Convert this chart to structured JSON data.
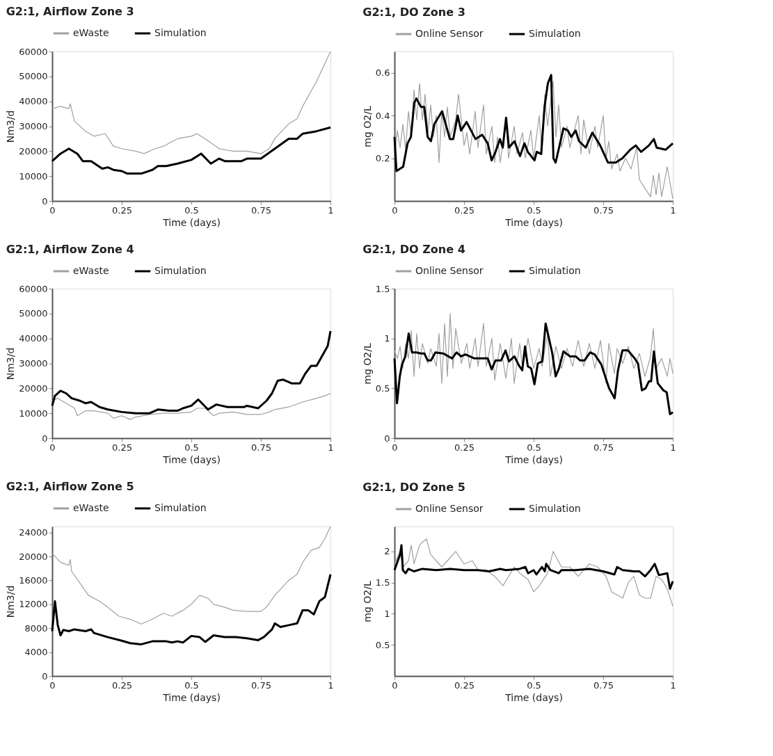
{
  "chart_data": [
    {
      "type": "line",
      "title": "G2:1, Airflow Zone 3",
      "xlabel": "Time (days)",
      "ylabel": "Nm3/d",
      "xlim": [
        0,
        1
      ],
      "xticks": [
        0,
        0.25,
        0.5,
        0.75,
        1
      ],
      "ylim": [
        0,
        60000
      ],
      "yticks": [
        0,
        10000,
        20000,
        30000,
        40000,
        50000,
        60000
      ],
      "grid": false,
      "legend": "top",
      "series": [
        {
          "name": "eWaste",
          "color": "#a0a0a0",
          "x": [
            0,
            0.03,
            0.06,
            0.065,
            0.08,
            0.12,
            0.15,
            0.19,
            0.22,
            0.25,
            0.3,
            0.33,
            0.37,
            0.4,
            0.45,
            0.5,
            0.52,
            0.55,
            0.6,
            0.65,
            0.7,
            0.75,
            0.78,
            0.8,
            0.85,
            0.88,
            0.9,
            0.95,
            1
          ],
          "values": [
            37000,
            38000,
            37000,
            39000,
            32000,
            28000,
            26000,
            27000,
            22000,
            21000,
            20000,
            19000,
            21000,
            22000,
            25000,
            26000,
            27000,
            25000,
            21000,
            20000,
            20000,
            19000,
            21000,
            25000,
            31000,
            33000,
            38000,
            48000,
            60000
          ]
        },
        {
          "name": "Simulation",
          "color": "#000000",
          "x": [
            0,
            0.03,
            0.06,
            0.09,
            0.11,
            0.14,
            0.18,
            0.2,
            0.22,
            0.25,
            0.27,
            0.32,
            0.36,
            0.38,
            0.41,
            0.45,
            0.5,
            0.535,
            0.57,
            0.6,
            0.62,
            0.68,
            0.7,
            0.75,
            0.8,
            0.85,
            0.88,
            0.9,
            0.95,
            1
          ],
          "values": [
            16000,
            19000,
            21000,
            19000,
            16000,
            16000,
            13000,
            13500,
            12500,
            12000,
            11000,
            11000,
            12500,
            14000,
            14000,
            15000,
            16500,
            19000,
            15000,
            17000,
            16000,
            16000,
            17000,
            17000,
            21000,
            25000,
            25000,
            27000,
            28000,
            29500
          ]
        }
      ]
    },
    {
      "type": "line",
      "title": "G2:1, DO Zone 3",
      "xlabel": "Time (days)",
      "ylabel": "mg O2/L",
      "xlim": [
        0,
        1
      ],
      "xticks": [
        0,
        0.25,
        0.5,
        0.75,
        1
      ],
      "ylim": [
        0,
        0.7
      ],
      "yticks": [
        0.2,
        0.4,
        0.6
      ],
      "grid": false,
      "legend": "top",
      "series": [
        {
          "name": "Online Sensor",
          "color": "#a0a0a0",
          "x": [
            0,
            0.01,
            0.02,
            0.03,
            0.04,
            0.05,
            0.06,
            0.07,
            0.08,
            0.09,
            0.1,
            0.11,
            0.12,
            0.13,
            0.14,
            0.15,
            0.16,
            0.17,
            0.18,
            0.19,
            0.2,
            0.22,
            0.23,
            0.25,
            0.26,
            0.27,
            0.29,
            0.3,
            0.32,
            0.33,
            0.35,
            0.36,
            0.37,
            0.38,
            0.4,
            0.41,
            0.43,
            0.44,
            0.46,
            0.47,
            0.49,
            0.5,
            0.52,
            0.53,
            0.54,
            0.55,
            0.57,
            0.58,
            0.59,
            0.6,
            0.62,
            0.63,
            0.66,
            0.67,
            0.68,
            0.7,
            0.72,
            0.73,
            0.75,
            0.76,
            0.77,
            0.78,
            0.8,
            0.81,
            0.83,
            0.85,
            0.87,
            0.88,
            0.9,
            0.92,
            0.93,
            0.94,
            0.95,
            0.96,
            0.98,
            1
          ],
          "values": [
            0.2,
            0.33,
            0.25,
            0.36,
            0.24,
            0.42,
            0.3,
            0.52,
            0.38,
            0.55,
            0.38,
            0.5,
            0.32,
            0.45,
            0.3,
            0.4,
            0.18,
            0.42,
            0.3,
            0.44,
            0.3,
            0.38,
            0.5,
            0.26,
            0.32,
            0.22,
            0.42,
            0.25,
            0.45,
            0.22,
            0.35,
            0.18,
            0.3,
            0.18,
            0.38,
            0.2,
            0.35,
            0.22,
            0.32,
            0.2,
            0.33,
            0.2,
            0.4,
            0.22,
            0.5,
            0.35,
            0.56,
            0.3,
            0.45,
            0.25,
            0.35,
            0.25,
            0.4,
            0.22,
            0.38,
            0.22,
            0.35,
            0.25,
            0.4,
            0.2,
            0.28,
            0.15,
            0.22,
            0.14,
            0.2,
            0.15,
            0.25,
            0.1,
            0.06,
            0.02,
            0.12,
            0.03,
            0.13,
            0.02,
            0.16,
            0.01
          ]
        },
        {
          "name": "Simulation",
          "color": "#000000",
          "x": [
            0,
            0.007,
            0.031,
            0.047,
            0.059,
            0.071,
            0.079,
            0.095,
            0.107,
            0.119,
            0.131,
            0.143,
            0.171,
            0.199,
            0.211,
            0.227,
            0.239,
            0.259,
            0.291,
            0.315,
            0.335,
            0.349,
            0.363,
            0.379,
            0.389,
            0.401,
            0.411,
            0.431,
            0.451,
            0.467,
            0.479,
            0.503,
            0.511,
            0.527,
            0.539,
            0.551,
            0.563,
            0.571,
            0.579,
            0.607,
            0.623,
            0.635,
            0.651,
            0.663,
            0.687,
            0.711,
            0.739,
            0.767,
            0.795,
            0.819,
            0.847,
            0.867,
            0.886,
            0.914,
            0.932,
            0.942,
            0.974,
            1
          ],
          "values": [
            0.3,
            0.14,
            0.16,
            0.27,
            0.3,
            0.46,
            0.48,
            0.44,
            0.44,
            0.3,
            0.28,
            0.36,
            0.42,
            0.29,
            0.29,
            0.4,
            0.33,
            0.37,
            0.29,
            0.31,
            0.27,
            0.19,
            0.23,
            0.29,
            0.25,
            0.39,
            0.25,
            0.28,
            0.21,
            0.27,
            0.23,
            0.19,
            0.23,
            0.22,
            0.44,
            0.55,
            0.59,
            0.2,
            0.18,
            0.34,
            0.33,
            0.3,
            0.33,
            0.28,
            0.25,
            0.32,
            0.26,
            0.18,
            0.18,
            0.2,
            0.24,
            0.26,
            0.23,
            0.26,
            0.29,
            0.25,
            0.24,
            0.27
          ]
        }
      ]
    },
    {
      "type": "line",
      "title": "G2:1, Airflow Zone 4",
      "xlabel": "Time (days)",
      "ylabel": "Nm3/d",
      "xlim": [
        0,
        1
      ],
      "xticks": [
        0,
        0.25,
        0.5,
        0.75,
        1
      ],
      "ylim": [
        0,
        60000
      ],
      "yticks": [
        0,
        10000,
        20000,
        30000,
        40000,
        50000,
        60000
      ],
      "grid": false,
      "legend": "top",
      "series": [
        {
          "name": "eWaste",
          "color": "#a0a0a0",
          "x": [
            0,
            0.02,
            0.05,
            0.08,
            0.09,
            0.12,
            0.15,
            0.2,
            0.22,
            0.25,
            0.28,
            0.3,
            0.35,
            0.4,
            0.45,
            0.5,
            0.52,
            0.55,
            0.58,
            0.6,
            0.65,
            0.7,
            0.75,
            0.78,
            0.8,
            0.85,
            0.9,
            0.95,
            0.98,
            1
          ],
          "values": [
            15000,
            16000,
            14000,
            12000,
            9000,
            11000,
            11000,
            10000,
            8000,
            9000,
            7500,
            8500,
            9500,
            10000,
            10000,
            10500,
            12000,
            12000,
            9000,
            10000,
            10500,
            9500,
            9500,
            10500,
            11500,
            12500,
            14500,
            16000,
            17000,
            18000
          ]
        },
        {
          "name": "Simulation",
          "color": "#000000",
          "x": [
            0,
            0.01,
            0.03,
            0.05,
            0.07,
            0.1,
            0.12,
            0.14,
            0.17,
            0.2,
            0.25,
            0.3,
            0.35,
            0.38,
            0.42,
            0.45,
            0.47,
            0.5,
            0.525,
            0.56,
            0.59,
            0.63,
            0.69,
            0.7,
            0.74,
            0.77,
            0.79,
            0.81,
            0.83,
            0.86,
            0.89,
            0.91,
            0.93,
            0.95,
            0.97,
            0.99,
            1
          ],
          "values": [
            13000,
            17000,
            19000,
            18000,
            16000,
            15000,
            14000,
            14500,
            12500,
            11500,
            10500,
            10000,
            10000,
            11500,
            11000,
            11000,
            12000,
            13000,
            15500,
            11500,
            13500,
            12500,
            12500,
            13000,
            12000,
            15000,
            18000,
            23000,
            23500,
            22000,
            22000,
            26000,
            29000,
            29000,
            33000,
            37000,
            43000
          ]
        }
      ]
    },
    {
      "type": "line",
      "title": "G2:1, DO Zone 4",
      "xlabel": "Time (days)",
      "ylabel": "mg O2/L",
      "xlim": [
        0,
        1
      ],
      "xticks": [
        0,
        0.25,
        0.5,
        0.75,
        1
      ],
      "ylim": [
        0,
        1.5
      ],
      "yticks": [
        0,
        0.5,
        1,
        1.5
      ],
      "grid": false,
      "legend": "top",
      "series": [
        {
          "name": "Online Sensor",
          "color": "#a0a0a0",
          "x": [
            0,
            0.01,
            0.02,
            0.03,
            0.04,
            0.05,
            0.06,
            0.07,
            0.08,
            0.09,
            0.1,
            0.12,
            0.13,
            0.15,
            0.16,
            0.17,
            0.18,
            0.19,
            0.2,
            0.21,
            0.22,
            0.24,
            0.26,
            0.27,
            0.29,
            0.3,
            0.32,
            0.33,
            0.35,
            0.36,
            0.38,
            0.4,
            0.42,
            0.43,
            0.45,
            0.46,
            0.48,
            0.5,
            0.52,
            0.53,
            0.55,
            0.56,
            0.58,
            0.6,
            0.62,
            0.64,
            0.66,
            0.68,
            0.7,
            0.72,
            0.74,
            0.76,
            0.77,
            0.79,
            0.8,
            0.82,
            0.84,
            0.86,
            0.88,
            0.9,
            0.92,
            0.93,
            0.94,
            0.96,
            0.98,
            0.99,
            1
          ],
          "values": [
            0.88,
            0.8,
            0.92,
            0.7,
            0.95,
            0.8,
            1.08,
            0.62,
            1.05,
            0.7,
            0.95,
            0.75,
            0.9,
            0.72,
            1.05,
            0.55,
            1.15,
            0.62,
            1.25,
            0.7,
            1.1,
            0.75,
            0.95,
            0.7,
            1.0,
            0.72,
            1.15,
            0.72,
            1.0,
            0.58,
            0.95,
            0.6,
            1.0,
            0.55,
            0.95,
            0.7,
            1.0,
            0.7,
            0.9,
            0.72,
            1.05,
            0.62,
            0.92,
            0.7,
            0.9,
            0.72,
            0.98,
            0.72,
            0.95,
            0.7,
            0.98,
            0.55,
            0.95,
            0.65,
            0.9,
            0.75,
            0.92,
            0.7,
            0.85,
            0.62,
            0.82,
            1.1,
            0.7,
            0.8,
            0.62,
            0.8,
            0.65
          ]
        },
        {
          "name": "Simulation",
          "color": "#000000",
          "x": [
            0,
            0.009,
            0.019,
            0.027,
            0.039,
            0.051,
            0.063,
            0.079,
            0.095,
            0.107,
            0.119,
            0.131,
            0.147,
            0.175,
            0.207,
            0.223,
            0.239,
            0.255,
            0.287,
            0.335,
            0.349,
            0.363,
            0.383,
            0.399,
            0.411,
            0.431,
            0.447,
            0.459,
            0.469,
            0.479,
            0.491,
            0.503,
            0.515,
            0.531,
            0.543,
            0.555,
            0.567,
            0.579,
            0.591,
            0.607,
            0.631,
            0.651,
            0.667,
            0.683,
            0.703,
            0.719,
            0.743,
            0.771,
            0.791,
            0.803,
            0.819,
            0.839,
            0.863,
            0.875,
            0.889,
            0.902,
            0.914,
            0.922,
            0.932,
            0.946,
            0.966,
            0.978,
            0.99,
            1
          ],
          "values": [
            0.8,
            0.35,
            0.62,
            0.74,
            0.82,
            1.05,
            0.86,
            0.86,
            0.85,
            0.85,
            0.78,
            0.78,
            0.86,
            0.85,
            0.8,
            0.86,
            0.82,
            0.84,
            0.8,
            0.8,
            0.69,
            0.78,
            0.78,
            0.88,
            0.77,
            0.82,
            0.73,
            0.68,
            0.92,
            0.72,
            0.7,
            0.54,
            0.75,
            0.77,
            1.15,
            1.0,
            0.85,
            0.62,
            0.7,
            0.87,
            0.82,
            0.82,
            0.78,
            0.78,
            0.86,
            0.84,
            0.74,
            0.5,
            0.4,
            0.68,
            0.88,
            0.88,
            0.8,
            0.75,
            0.48,
            0.5,
            0.57,
            0.57,
            0.87,
            0.55,
            0.48,
            0.46,
            0.24,
            0.26
          ]
        }
      ]
    },
    {
      "type": "line",
      "title": "G2:1, Airflow Zone 5",
      "xlabel": "Time (days)",
      "ylabel": "Nm3/d",
      "xlim": [
        0,
        1
      ],
      "xticks": [
        0,
        0.25,
        0.5,
        0.75,
        1
      ],
      "ylim": [
        0,
        25000
      ],
      "yticks": [
        0,
        4000,
        8000,
        12000,
        16000,
        20000,
        24000
      ],
      "grid": false,
      "legend": "top",
      "series": [
        {
          "name": "eWaste",
          "color": "#a0a0a0",
          "x": [
            0,
            0.03,
            0.06,
            0.065,
            0.07,
            0.1,
            0.13,
            0.17,
            0.2,
            0.24,
            0.28,
            0.32,
            0.36,
            0.4,
            0.43,
            0.47,
            0.5,
            0.53,
            0.56,
            0.58,
            0.62,
            0.65,
            0.7,
            0.75,
            0.77,
            0.8,
            0.85,
            0.88,
            0.9,
            0.93,
            0.96,
            0.98,
            1
          ],
          "values": [
            20500,
            19000,
            18500,
            19500,
            17500,
            15500,
            13500,
            12500,
            11500,
            10000,
            9500,
            8700,
            9500,
            10500,
            10000,
            11000,
            12000,
            13500,
            13000,
            12000,
            11500,
            11000,
            10800,
            10800,
            11500,
            13500,
            16000,
            17000,
            19000,
            21000,
            21500,
            23000,
            25000
          ]
        },
        {
          "name": "Simulation",
          "color": "#000000",
          "x": [
            0,
            0.01,
            0.02,
            0.03,
            0.04,
            0.06,
            0.08,
            0.12,
            0.14,
            0.15,
            0.2,
            0.25,
            0.28,
            0.32,
            0.36,
            0.41,
            0.43,
            0.45,
            0.47,
            0.5,
            0.53,
            0.55,
            0.58,
            0.62,
            0.66,
            0.7,
            0.74,
            0.76,
            0.79,
            0.8,
            0.82,
            0.85,
            0.88,
            0.9,
            0.92,
            0.94,
            0.96,
            0.98,
            1
          ],
          "values": [
            7500,
            12500,
            8500,
            6800,
            7700,
            7500,
            7800,
            7500,
            7800,
            7200,
            6500,
            5900,
            5500,
            5300,
            5800,
            5800,
            5600,
            5800,
            5600,
            6700,
            6500,
            5700,
            6800,
            6500,
            6500,
            6300,
            6000,
            6500,
            7800,
            8800,
            8200,
            8500,
            8800,
            11000,
            11000,
            10300,
            12500,
            13200,
            17000
          ]
        }
      ]
    },
    {
      "type": "line",
      "title": "G2:1, DO Zone 5",
      "xlabel": "Time (days)",
      "ylabel": "mg O2/L",
      "xlim": [
        0,
        1
      ],
      "xticks": [
        0,
        0.25,
        0.5,
        0.75,
        1
      ],
      "ylim": [
        0,
        2.4
      ],
      "yticks": [
        0.5,
        1,
        1.5,
        2
      ],
      "grid": false,
      "legend": "top",
      "series": [
        {
          "name": "Online Sensor",
          "color": "#a0a0a0",
          "x": [
            0,
            0.02,
            0.03,
            0.05,
            0.06,
            0.07,
            0.09,
            0.1,
            0.115,
            0.13,
            0.15,
            0.17,
            0.19,
            0.22,
            0.25,
            0.28,
            0.3,
            0.33,
            0.36,
            0.39,
            0.41,
            0.43,
            0.45,
            0.48,
            0.5,
            0.52,
            0.55,
            0.57,
            0.6,
            0.63,
            0.66,
            0.7,
            0.73,
            0.76,
            0.78,
            0.8,
            0.82,
            0.84,
            0.86,
            0.88,
            0.9,
            0.92,
            0.94,
            0.96,
            0.98,
            1
          ],
          "values": [
            1.8,
            2.0,
            1.75,
            1.85,
            2.1,
            1.8,
            2.1,
            2.15,
            2.2,
            1.95,
            1.85,
            1.75,
            1.85,
            2.0,
            1.8,
            1.85,
            1.7,
            1.7,
            1.6,
            1.45,
            1.6,
            1.75,
            1.65,
            1.55,
            1.35,
            1.45,
            1.65,
            2.0,
            1.75,
            1.75,
            1.6,
            1.8,
            1.75,
            1.6,
            1.35,
            1.3,
            1.25,
            1.5,
            1.6,
            1.3,
            1.25,
            1.25,
            1.6,
            1.55,
            1.4,
            1.12
          ]
        },
        {
          "name": "Simulation",
          "color": "#000000",
          "x": [
            0,
            0.02,
            0.025,
            0.03,
            0.04,
            0.05,
            0.07,
            0.1,
            0.15,
            0.2,
            0.25,
            0.3,
            0.34,
            0.38,
            0.4,
            0.45,
            0.47,
            0.48,
            0.5,
            0.51,
            0.53,
            0.54,
            0.545,
            0.56,
            0.59,
            0.6,
            0.65,
            0.7,
            0.75,
            0.79,
            0.8,
            0.82,
            0.86,
            0.88,
            0.9,
            0.92,
            0.935,
            0.95,
            0.98,
            0.99,
            1
          ],
          "values": [
            1.7,
            1.95,
            2.1,
            1.7,
            1.65,
            1.72,
            1.68,
            1.72,
            1.7,
            1.72,
            1.7,
            1.7,
            1.68,
            1.72,
            1.7,
            1.72,
            1.75,
            1.65,
            1.7,
            1.63,
            1.75,
            1.68,
            1.8,
            1.7,
            1.65,
            1.7,
            1.7,
            1.72,
            1.68,
            1.63,
            1.75,
            1.7,
            1.68,
            1.68,
            1.6,
            1.7,
            1.8,
            1.62,
            1.65,
            1.4,
            1.52
          ]
        }
      ]
    }
  ]
}
